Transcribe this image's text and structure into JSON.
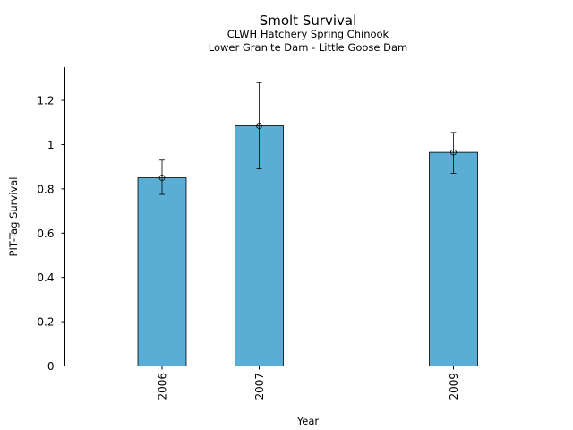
{
  "chart_data": {
    "type": "bar",
    "title": "Smolt Survival",
    "subtitle_lines": [
      "CLWH Hatchery Spring Chinook",
      "Lower Granite Dam - Little Goose Dam"
    ],
    "xlabel": "Year",
    "ylabel": "PIT-Tag Survival",
    "categories": [
      "2006",
      "2007",
      "2009"
    ],
    "x": [
      2006,
      2007,
      2009
    ],
    "xlim": [
      2005,
      2010
    ],
    "values": [
      0.85,
      1.085,
      0.965
    ],
    "error_low": [
      0.775,
      0.89,
      0.87
    ],
    "error_high": [
      0.93,
      1.28,
      1.055
    ],
    "ylim": [
      0,
      1.35
    ],
    "yticks": [
      0,
      0.2,
      0.4,
      0.6,
      0.8,
      1,
      1.2
    ],
    "ytick_labels": [
      "0",
      "0.2",
      "0.4",
      "0.6",
      "0.8",
      "1",
      "1.2"
    ],
    "bar_color": "#5aaed6",
    "grid": false,
    "legend": "none"
  }
}
